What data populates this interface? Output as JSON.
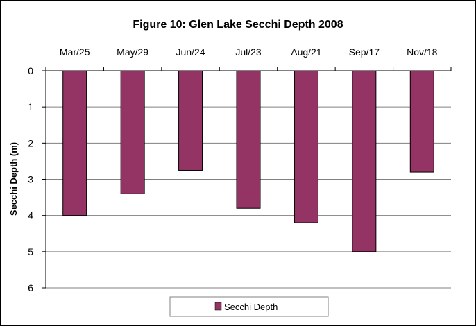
{
  "chart_data": {
    "type": "bar",
    "title": "Figure 10: Glen Lake Secchi Depth 2008",
    "xlabel": "",
    "ylabel": "Secchi Depth (m)",
    "categories": [
      "Mar/25",
      "May/29",
      "Jun/24",
      "Jul/23",
      "Aug/21",
      "Sep/17",
      "Nov/18"
    ],
    "series": [
      {
        "name": "Secchi Depth",
        "values": [
          4.0,
          3.4,
          2.75,
          3.8,
          4.2,
          5.0,
          2.8
        ]
      }
    ],
    "ylim": [
      0,
      6
    ],
    "y_inverted": true,
    "y_ticks": [
      "0",
      "1",
      "2",
      "3",
      "4",
      "5",
      "6"
    ],
    "grid": true,
    "legend_position": "bottom",
    "colors": {
      "bar": "#943464",
      "grid": "#808080",
      "axis": "#000000"
    }
  }
}
